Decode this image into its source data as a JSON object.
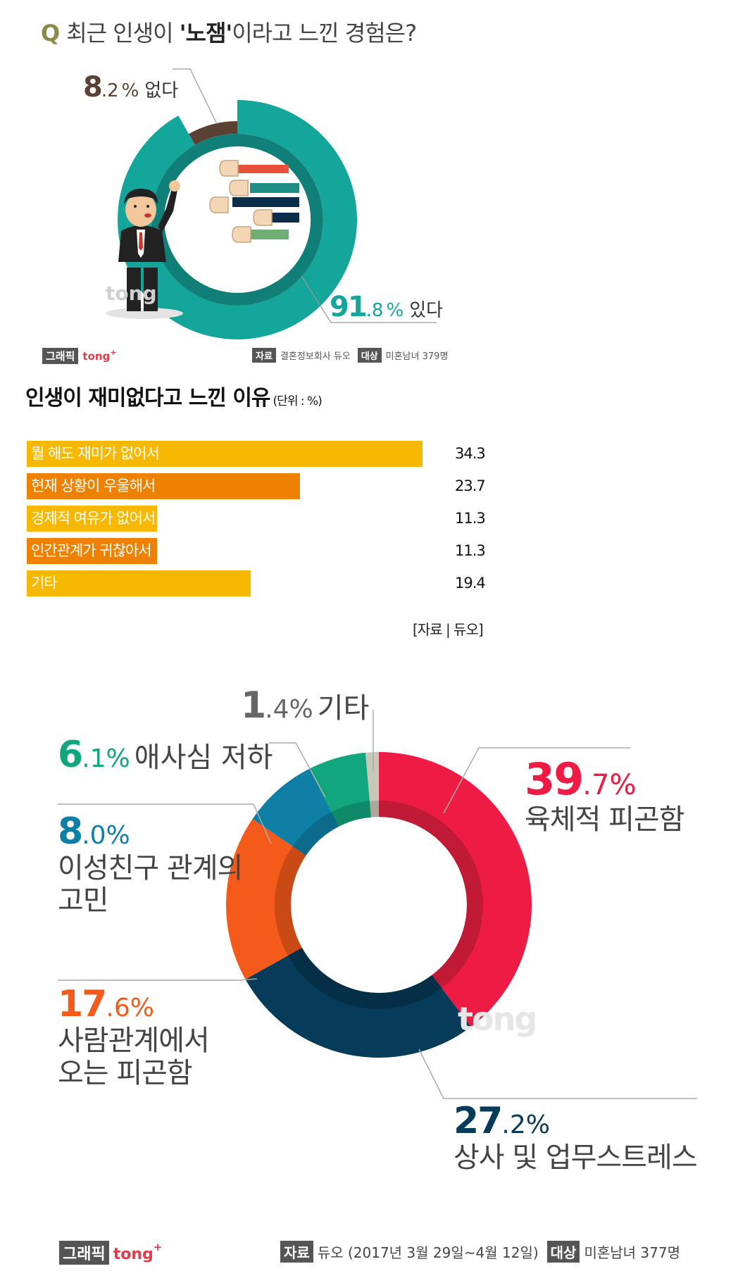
{
  "chart1": {
    "q_prefix": "Q",
    "title_pre": "최근 인생이 ",
    "title_em": "'노잼'",
    "title_post": "이라고 느낀 경험은?",
    "slices": [
      {
        "label": "없다",
        "int": "8",
        "dec": ".2",
        "pct": "%",
        "value": 8.2,
        "color": "#5b4133"
      },
      {
        "label": "있다",
        "int": "91",
        "dec": ".8",
        "pct": "%",
        "value": 91.8,
        "color": "#14a59b"
      }
    ],
    "footer": {
      "graphic": "그래픽",
      "brand": "tong",
      "brand_plus": "+",
      "src_label": "자료",
      "src": "결혼정보회사 듀오",
      "target_label": "대상",
      "target": "미혼남녀 379명"
    },
    "watermark": "tong"
  },
  "chart_data": [
    {
      "type": "pie",
      "title": "최근 인생이 '노잼'이라고 느낀 경험은?",
      "categories": [
        "없다",
        "있다"
      ],
      "values": [
        8.2,
        91.8
      ]
    },
    {
      "type": "bar",
      "title": "인생이 재미없다고 느낀 이유",
      "unit": "(단위 : %)",
      "categories": [
        "뭘 해도 재미가 없어서",
        "현재 상황이 우울해서",
        "경제적 여유가 없어서",
        "인간관계가 귀찮아서",
        "기타"
      ],
      "values": [
        34.3,
        23.7,
        11.3,
        11.3,
        19.4
      ],
      "xlim": [
        0,
        34.3
      ]
    },
    {
      "type": "pie",
      "categories": [
        "육체적 피곤함",
        "상사 및 업무스트레스",
        "사람관계에서 오는 피곤함",
        "이성친구 관계의 고민",
        "애사심 저하",
        "기타"
      ],
      "values": [
        39.7,
        27.2,
        17.6,
        8.0,
        6.1,
        1.4
      ]
    }
  ],
  "chart2": {
    "title": "인생이 재미없다고 느낀 이유",
    "unit": "(단위 : %)",
    "bars": [
      {
        "label": "뭘 해도 재미가 없어서",
        "value": 34.3,
        "display": "34.3",
        "color": "#f6b800"
      },
      {
        "label": "현재 상황이 우울해서",
        "value": 23.7,
        "display": "23.7",
        "color": "#ee8100"
      },
      {
        "label": "경제적 여유가 없어서",
        "value": 11.3,
        "display": "11.3",
        "color": "#f6b800"
      },
      {
        "label": "인간관계가 귀찮아서",
        "value": 11.3,
        "display": "11.3",
        "color": "#ee8100"
      },
      {
        "label": "기타",
        "value": 19.4,
        "display": "19.4",
        "color": "#f6b800"
      }
    ],
    "source": "[자료 | 듀오]"
  },
  "chart3": {
    "slices": [
      {
        "int": "39",
        "dec": ".7",
        "pct": "%",
        "label_lines": [
          "육체적 피곤함"
        ],
        "value": 39.7,
        "color": "#ee1c44",
        "inner": "#c11a36"
      },
      {
        "int": "27",
        "dec": ".2",
        "pct": "%",
        "label_lines": [
          "상사 및 업무스트레스"
        ],
        "value": 27.2,
        "color": "#063c5a",
        "inner": "#052f47"
      },
      {
        "int": "17",
        "dec": ".6",
        "pct": "%",
        "label_lines": [
          "사람관계에서",
          "오는 피곤함"
        ],
        "value": 17.6,
        "color": "#f45a19",
        "inner": "#c94a14"
      },
      {
        "int": "8",
        "dec": ".0",
        "pct": "%",
        "label_lines": [
          "이성친구 관계의",
          "고민"
        ],
        "value": 8.0,
        "color": "#0f7fa6",
        "inner": "#0c6a8b"
      },
      {
        "int": "6",
        "dec": ".1",
        "pct": "%",
        "label_lines": [
          "애사심 저하"
        ],
        "value": 6.1,
        "color": "#11a67d",
        "inner": "#0e8a68"
      },
      {
        "int": "1",
        "dec": ".4",
        "pct": "%",
        "label_lines": [
          "기타"
        ],
        "value": 1.4,
        "color": "#c8c7b9",
        "inner": "#a9a89b"
      }
    ],
    "label_colors": [
      "#ee1c44",
      "#063c5a",
      "#f45a19",
      "#0f7fa6",
      "#11a67d",
      "#666666"
    ],
    "footer": {
      "graphic": "그래픽",
      "brand": "tong",
      "brand_plus": "+",
      "src_label": "자료",
      "src": "듀오 (2017년 3월 29일~4월 12일)",
      "target_label": "대상",
      "target": "미혼남녀 377명"
    },
    "watermark": "tong"
  }
}
